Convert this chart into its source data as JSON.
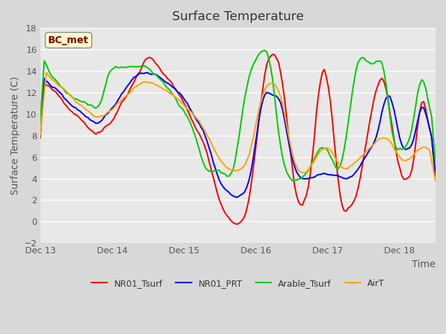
{
  "title": "Surface Temperature",
  "ylabel": "Surface Temperature (C)",
  "xlabel": "Time",
  "annotation_text": "BC_met",
  "annotation_color": "#8B0000",
  "annotation_bg": "#FFFFCC",
  "ylim": [
    -2,
    18
  ],
  "yticks": [
    -2,
    0,
    2,
    4,
    6,
    8,
    10,
    12,
    14,
    16,
    18
  ],
  "xtick_labels": [
    "Dec 13",
    "Dec 14",
    "Dec 15",
    "Dec 16",
    "Dec 17",
    "Dec 18"
  ],
  "colors": {
    "NR01_Tsurf": "#FF0000",
    "NR01_PRT": "#0000FF",
    "Arable_Tsurf": "#00CC00",
    "AirT": "#FFA500"
  },
  "linewidth": 1.5,
  "plot_bg": "#E8E8E8",
  "grid_color": "#FFFFFF",
  "title_fontsize": 13,
  "label_fontsize": 10
}
